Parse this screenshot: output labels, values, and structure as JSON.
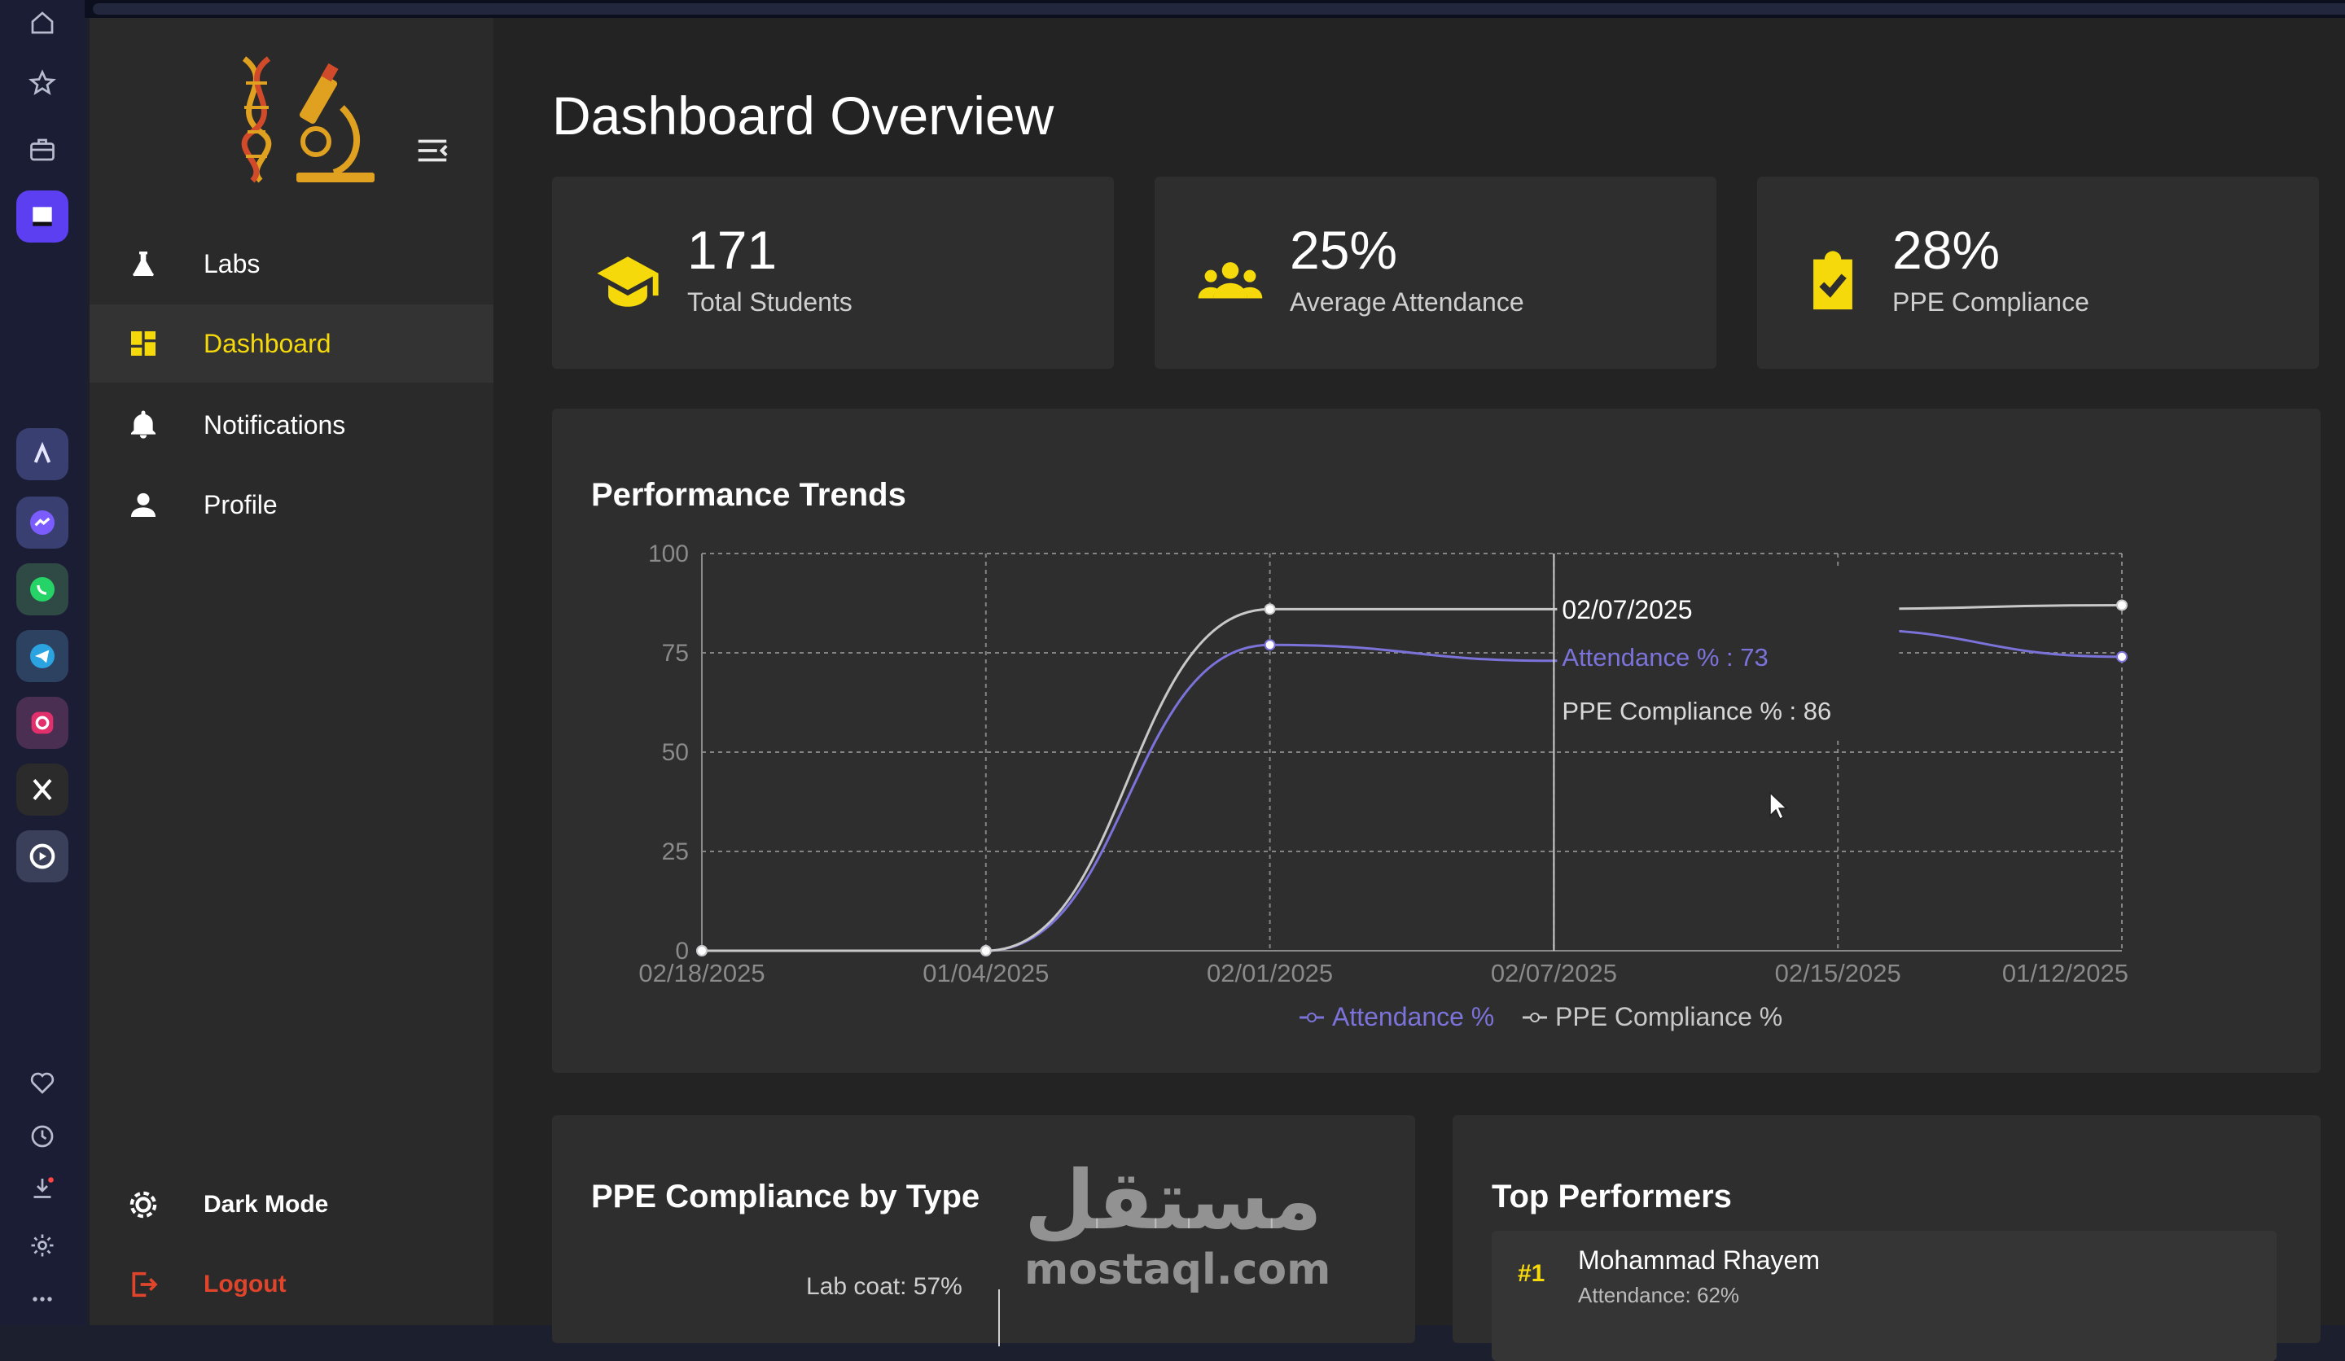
{
  "sidebar": {
    "items": [
      {
        "label": "Labs",
        "icon": "flask-icon"
      },
      {
        "label": "Dashboard",
        "icon": "dashboard-icon",
        "active": true
      },
      {
        "label": "Notifications",
        "icon": "bell-icon"
      },
      {
        "label": "Profile",
        "icon": "person-icon"
      }
    ],
    "dark_mode_label": "Dark Mode",
    "logout_label": "Logout"
  },
  "page": {
    "title": "Dashboard Overview"
  },
  "stats": [
    {
      "value": "171",
      "caption": "Total Students",
      "icon": "graduation-cap-icon"
    },
    {
      "value": "25%",
      "caption": "Average Attendance",
      "icon": "group-icon"
    },
    {
      "value": "28%",
      "caption": "PPE Compliance",
      "icon": "clipboard-check-icon"
    }
  ],
  "performance": {
    "title": "Performance Trends"
  },
  "chart_data": {
    "type": "line",
    "title": "Performance Trends",
    "x": [
      "02/18/2025",
      "01/04/2025",
      "02/01/2025",
      "02/07/2025",
      "02/15/2025",
      "01/12/2025"
    ],
    "ylim": [
      0,
      100
    ],
    "yticks": [
      0,
      25,
      50,
      75,
      100
    ],
    "grid": true,
    "legend": "bottom",
    "series": [
      {
        "name": "Attendance %",
        "values": [
          0,
          0,
          77,
          73,
          81,
          74
        ],
        "color": "#7b73d9"
      },
      {
        "name": "PPE Compliance %",
        "values": [
          0,
          0,
          86,
          86,
          86,
          87
        ],
        "color": "#c8c8c8"
      }
    ],
    "tooltip": {
      "date": "02/07/2025",
      "attendance": "Attendance % : 73",
      "ppe": "PPE Compliance % : 86"
    }
  },
  "ppe_by_type": {
    "title": "PPE Compliance by Type",
    "first_label": "Lab coat: 57%"
  },
  "top_performers": {
    "title": "Top Performers",
    "first": {
      "rank": "#1",
      "name": "Mohammad Rhayem",
      "detail": "Attendance: 62%"
    }
  },
  "watermark": {
    "arabic": "مستقل",
    "latin": "mostaql.com"
  },
  "colors": {
    "accent": "#f5d90a",
    "logout": "#e0452c",
    "attendance": "#7b73d9",
    "ppe": "#c8c8c8"
  }
}
